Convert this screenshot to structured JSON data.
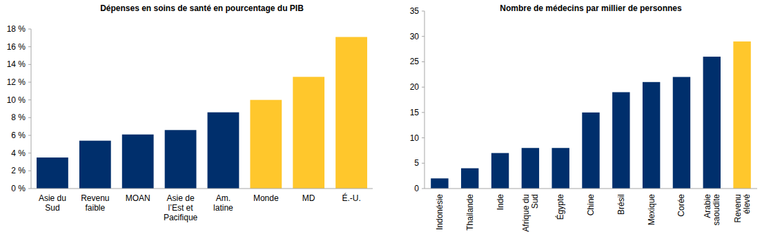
{
  "chart_data": [
    {
      "type": "bar",
      "title": "Dépenses en soins de santé en pourcentage du PIB",
      "categories": [
        "Asie du Sud",
        "Revenu faible",
        "MOAN",
        "Asie de l’Est et Pacifique",
        "Am. latine",
        "Monde",
        "MD",
        "É.-U."
      ],
      "values": [
        3.5,
        5.4,
        6.1,
        6.6,
        8.6,
        10.0,
        12.6,
        17.1
      ],
      "colors": [
        "#002f6c",
        "#002f6c",
        "#002f6c",
        "#002f6c",
        "#002f6c",
        "#ffc72c",
        "#ffc72c",
        "#ffc72c"
      ],
      "ylim": [
        0,
        18
      ],
      "yticks": [
        {
          "value": 0,
          "label": "0 %"
        },
        {
          "value": 2,
          "label": "2 %"
        },
        {
          "value": 4,
          "label": "4 %"
        },
        {
          "value": 6,
          "label": "6 %"
        },
        {
          "value": 8,
          "label": "8 %"
        },
        {
          "value": 10,
          "label": "10 %"
        },
        {
          "value": 12,
          "label": "12 %"
        },
        {
          "value": 14,
          "label": "14 %"
        },
        {
          "value": 16,
          "label": "16 %"
        },
        {
          "value": 18,
          "label": "18 %"
        }
      ],
      "grid": false
    },
    {
      "type": "bar",
      "title": "Nombre de médecins par millier de personnes",
      "categories": [
        "Indonésie",
        "Thailande",
        "Inde",
        "Afrique du Sud",
        "Égypte",
        "Chine",
        "Brésil",
        "Mexique",
        "Corée",
        "Arabie saoudite",
        "Revenu élevé"
      ],
      "values": [
        2,
        4,
        7,
        8,
        8,
        15,
        19,
        21,
        22,
        26,
        29
      ],
      "colors": [
        "#002f6c",
        "#002f6c",
        "#002f6c",
        "#002f6c",
        "#002f6c",
        "#002f6c",
        "#002f6c",
        "#002f6c",
        "#002f6c",
        "#002f6c",
        "#ffc72c"
      ],
      "ylim": [
        0,
        35
      ],
      "yticks": [
        0,
        5,
        10,
        15,
        20,
        25,
        30,
        35
      ],
      "grid": false
    }
  ]
}
